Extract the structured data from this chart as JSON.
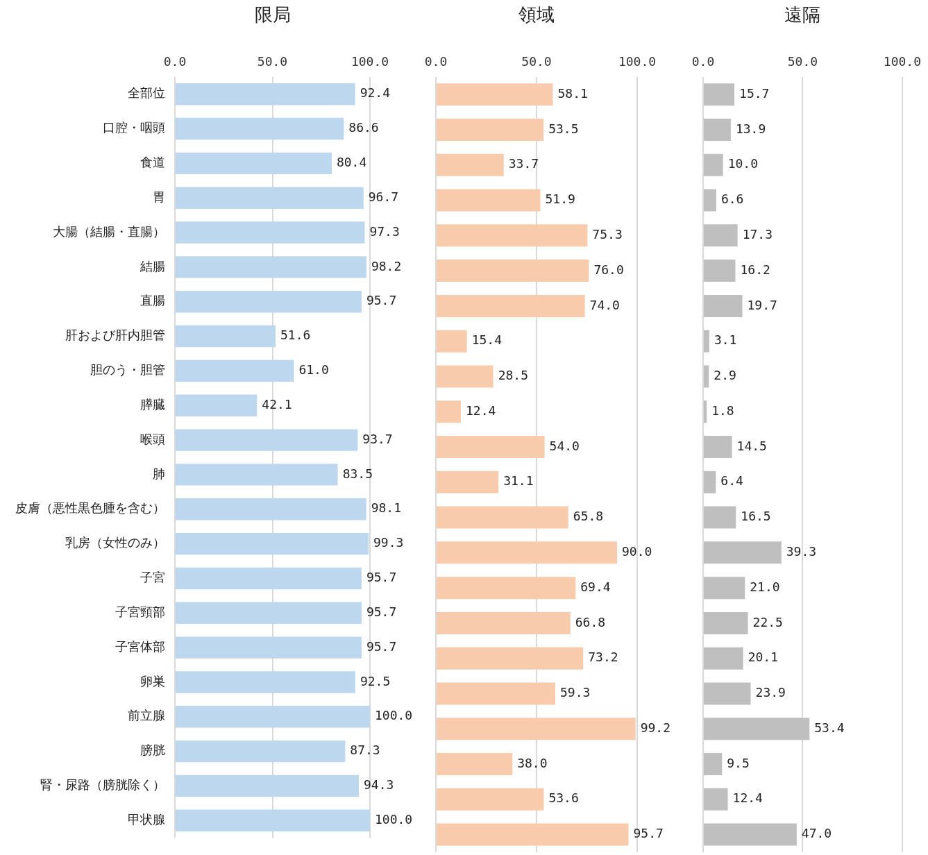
{
  "chart_data": [
    {
      "type": "bar",
      "orientation": "horizontal",
      "title": "限局",
      "color": "#bdd7ee",
      "grid": "x",
      "categories": [
        "全部位",
        "口腔・咽頭",
        "食道",
        "胃",
        "大腸（結腸・直腸）",
        "結腸",
        "直腸",
        "肝および肝内胆管",
        "胆のう・胆管",
        "膵臓",
        "喉頭",
        "肺",
        "皮膚（悪性黒色腫を含む）",
        "乳房（女性のみ）",
        "子宮",
        "子宮頸部",
        "子宮体部",
        "卵巣",
        "前立腺",
        "膀胱",
        "腎・尿路（膀胱除く）",
        "甲状腺"
      ],
      "values": [
        92.4,
        86.6,
        80.4,
        96.7,
        97.3,
        98.2,
        95.7,
        51.6,
        61.0,
        42.1,
        93.7,
        83.5,
        98.1,
        99.3,
        95.7,
        95.7,
        95.7,
        92.5,
        100.0,
        87.3,
        94.3,
        100.0
      ],
      "value_labels": [
        "92.4",
        "86.6",
        "80.4",
        "96.7",
        "97.3",
        "98.2",
        "95.7",
        "51.6",
        "61.0",
        "42.1",
        "93.7",
        "83.5",
        "98.1",
        "99.3",
        "95.7",
        "95.7",
        "95.7",
        "92.5",
        "100.0",
        "87.3",
        "94.3",
        "100.0"
      ],
      "xlim": [
        0,
        100
      ],
      "xticks": [
        {
          "value": 0,
          "label": "0.0"
        },
        {
          "value": 50,
          "label": "50.0"
        },
        {
          "value": 100,
          "label": "100.0"
        }
      ]
    },
    {
      "type": "bar",
      "orientation": "horizontal",
      "title": "領域",
      "color": "#f8cbad",
      "grid": "x",
      "tick_labels": "x",
      "categories": [
        null,
        null,
        null,
        null,
        null,
        null,
        null,
        null,
        null,
        null,
        null,
        null,
        null,
        null,
        null,
        null,
        null,
        null,
        null,
        null,
        null,
        null
      ],
      "values": [
        58.1,
        53.5,
        33.7,
        51.9,
        75.3,
        76.0,
        74.0,
        15.4,
        28.5,
        12.4,
        54.0,
        31.1,
        65.8,
        90.0,
        69.4,
        66.8,
        73.2,
        59.3,
        99.2,
        38.0,
        53.6,
        95.7
      ],
      "value_labels": [
        "58.1",
        "53.5",
        "33.7",
        "51.9",
        "75.3",
        "76.0",
        "74.0",
        "15.4",
        "28.5",
        "12.4",
        "54.0",
        "31.1",
        "65.8",
        "90.0",
        "69.4",
        "66.8",
        "73.2",
        "59.3",
        "99.2",
        "38.0",
        "53.6",
        "95.7"
      ],
      "xlim": [
        0,
        100
      ],
      "xticks": [
        {
          "value": 0,
          "label": "0.0"
        },
        {
          "value": 50,
          "label": "50.0"
        },
        {
          "value": 100,
          "label": "100.0"
        }
      ]
    },
    {
      "type": "bar",
      "orientation": "horizontal",
      "title": "遠隔",
      "color": "#bfbfbf",
      "grid": "x",
      "tick_labels": "x",
      "categories": [
        null,
        null,
        null,
        null,
        null,
        null,
        null,
        null,
        null,
        null,
        null,
        null,
        null,
        null,
        null,
        null,
        null,
        null,
        null,
        null,
        null,
        null
      ],
      "values": [
        15.7,
        13.9,
        10.0,
        6.6,
        17.3,
        16.2,
        19.7,
        3.1,
        2.9,
        1.8,
        14.5,
        6.4,
        16.5,
        39.3,
        21.0,
        22.5,
        20.1,
        23.9,
        53.4,
        9.5,
        12.4,
        47.0
      ],
      "value_labels": [
        "15.7",
        "13.9",
        "10.0",
        "6.6",
        "17.3",
        "16.2",
        "19.7",
        "3.1",
        "2.9",
        "1.8",
        "14.5",
        "6.4",
        "16.5",
        "39.3",
        "21.0",
        "22.5",
        "20.1",
        "23.9",
        "53.4",
        "9.5",
        "12.4",
        "47.0"
      ],
      "xlim": [
        0,
        100
      ],
      "xticks": [
        {
          "value": 0,
          "label": "0.0"
        },
        {
          "value": 50,
          "label": "50.0"
        },
        {
          "value": 100,
          "label": "100.0"
        }
      ]
    }
  ]
}
